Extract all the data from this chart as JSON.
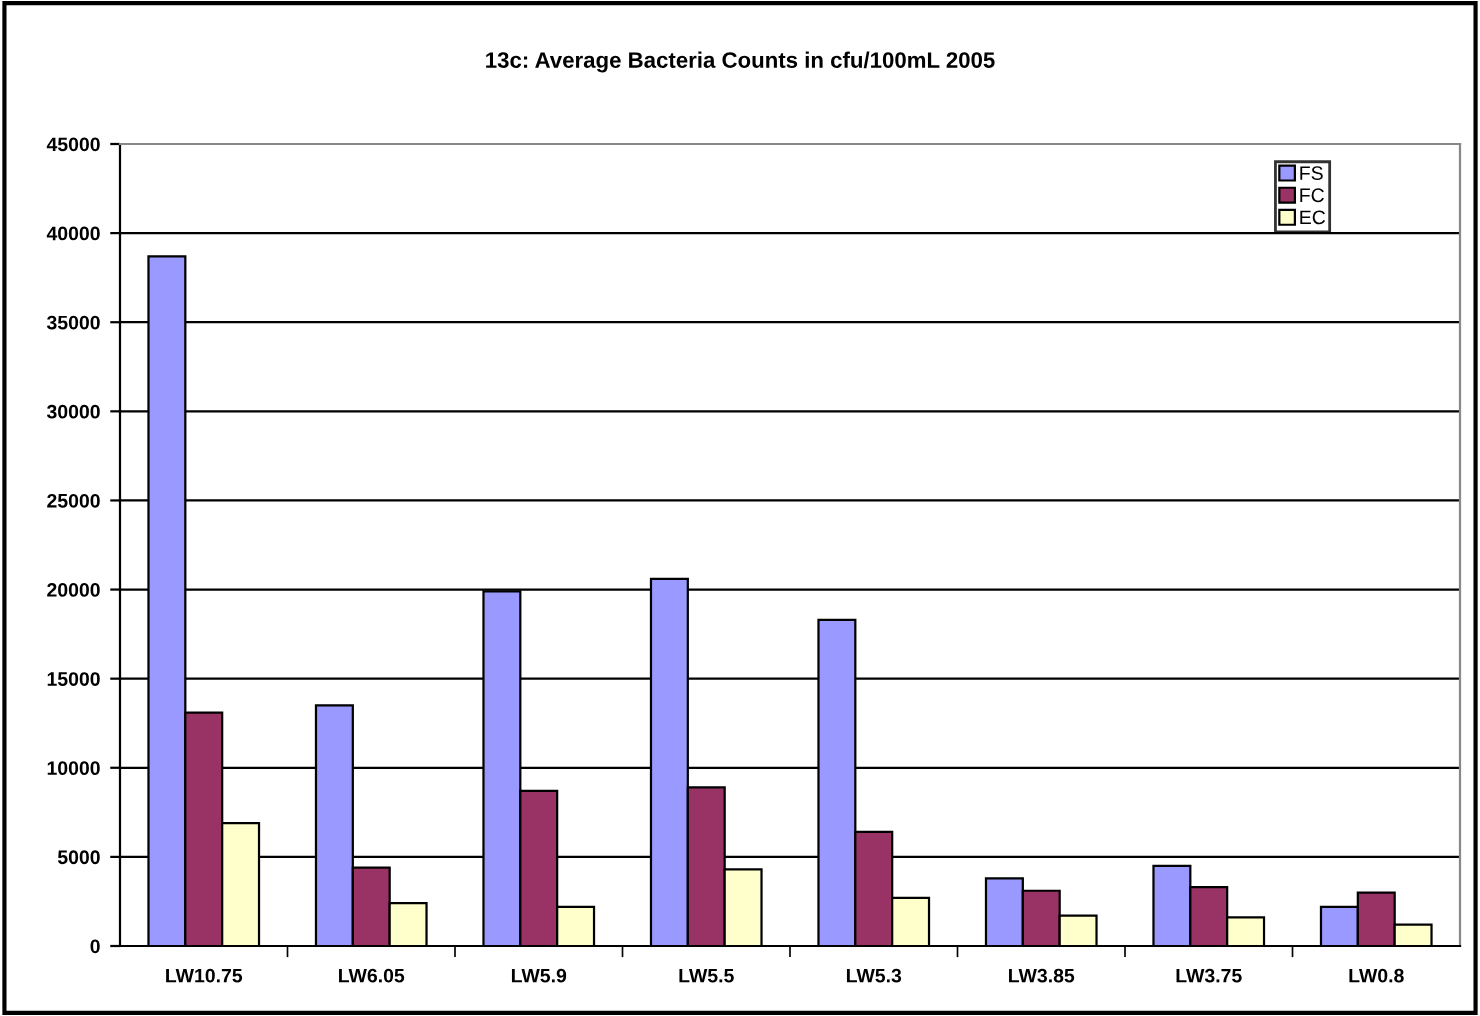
{
  "chart_data": {
    "type": "bar",
    "title": "13c: Average Bacteria Counts in cfu/100mL 2005",
    "categories": [
      "LW10.75",
      "LW6.05",
      "LW5.9",
      "LW5.5",
      "LW5.3",
      "LW3.85",
      "LW3.75",
      "LW0.8"
    ],
    "series": [
      {
        "name": "FS",
        "color": "#9999ff",
        "values": [
          38700,
          13500,
          19900,
          20600,
          18300,
          3800,
          4500,
          2200
        ]
      },
      {
        "name": "FC",
        "color": "#993366",
        "values": [
          13100,
          4400,
          8700,
          8900,
          6400,
          3100,
          3300,
          3000
        ]
      },
      {
        "name": "EC",
        "color": "#ffffcc",
        "values": [
          6900,
          2400,
          2200,
          4300,
          2700,
          1700,
          1600,
          1200
        ]
      }
    ],
    "ylim": [
      0,
      45000
    ],
    "yticks": [
      0,
      5000,
      10000,
      15000,
      20000,
      25000,
      30000,
      35000,
      40000,
      45000
    ],
    "grid": "y",
    "legend": "top right"
  }
}
